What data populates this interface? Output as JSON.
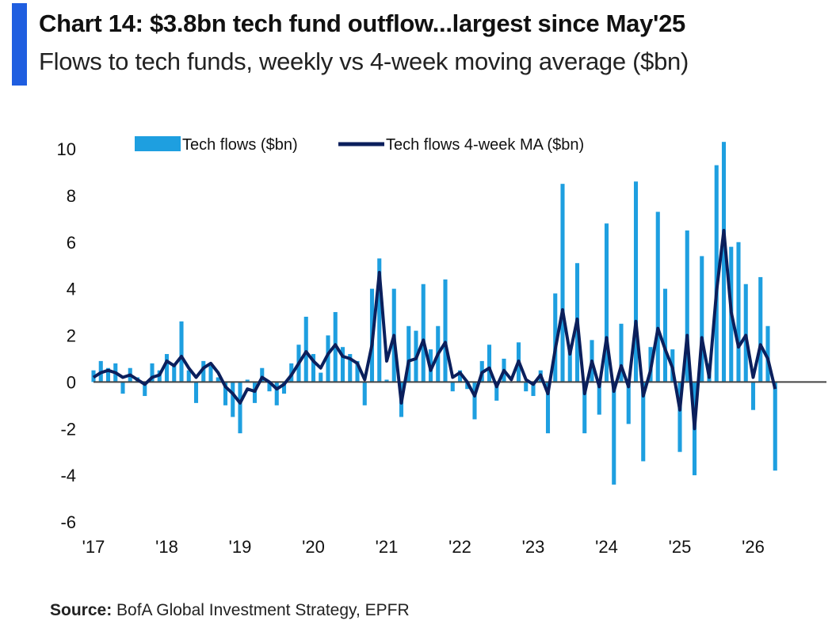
{
  "header": {
    "title": "Chart 14: $3.8bn tech fund outflow...largest since May'25",
    "subtitle": "Flows to tech funds, weekly vs 4-week moving average ($bn)"
  },
  "footer": {
    "source_label": "Source:",
    "source_text": "BofA Global Investment Strategy, EPFR"
  },
  "colors": {
    "accent": "#1f5ee0",
    "weekly": "#1e9fe0",
    "ma": "#0b1f5c",
    "zero_line": "#444444"
  },
  "chart_data": {
    "type": "bar",
    "title": "Chart 14: $3.8bn tech fund outflow...largest since May'25",
    "subtitle": "Flows to tech funds, weekly vs 4-week moving average ($bn)",
    "xlabel": "",
    "ylabel": "",
    "x_unit": "year (decimal)",
    "xlim": [
      2017,
      2027
    ],
    "ylim": [
      -6,
      10
    ],
    "yticks": [
      10,
      8,
      6,
      4,
      2,
      0,
      -2,
      -4,
      -6
    ],
    "xticks": [
      2017,
      2018,
      2019,
      2020,
      2021,
      2022,
      2023,
      2024,
      2025,
      2026
    ],
    "xtick_labels": [
      "'17",
      "'18",
      "'19",
      "'20",
      "'21",
      "'22",
      "'23",
      "'24",
      "'25",
      "'26"
    ],
    "grid": false,
    "legend_position": "top",
    "legend": [
      "Tech flows ($bn)",
      "Tech flows 4-week MA ($bn)"
    ],
    "series": [
      {
        "name": "Tech flows ($bn)",
        "style": "weekly bars",
        "x": [
          2017.0,
          2017.1,
          2017.2,
          2017.3,
          2017.4,
          2017.5,
          2017.6,
          2017.7,
          2017.8,
          2017.9,
          2018.0,
          2018.1,
          2018.2,
          2018.3,
          2018.4,
          2018.5,
          2018.6,
          2018.7,
          2018.8,
          2018.9,
          2019.0,
          2019.1,
          2019.2,
          2019.3,
          2019.4,
          2019.5,
          2019.6,
          2019.7,
          2019.8,
          2019.9,
          2020.0,
          2020.1,
          2020.2,
          2020.3,
          2020.4,
          2020.5,
          2020.6,
          2020.7,
          2020.8,
          2020.9,
          2021.0,
          2021.1,
          2021.2,
          2021.3,
          2021.4,
          2021.5,
          2021.6,
          2021.7,
          2021.8,
          2021.9,
          2022.0,
          2022.1,
          2022.2,
          2022.3,
          2022.4,
          2022.5,
          2022.6,
          2022.7,
          2022.8,
          2022.9,
          2023.0,
          2023.1,
          2023.2,
          2023.3,
          2023.4,
          2023.5,
          2023.6,
          2023.7,
          2023.8,
          2023.9,
          2024.0,
          2024.1,
          2024.2,
          2024.3,
          2024.4,
          2024.5,
          2024.6,
          2024.7,
          2024.8,
          2024.9,
          2025.0,
          2025.1,
          2025.2,
          2025.3,
          2025.4,
          2025.5,
          2025.6,
          2025.7,
          2025.8,
          2025.9,
          2026.0,
          2026.1,
          2026.2,
          2026.3
        ],
        "values": [
          0.5,
          0.9,
          0.6,
          0.8,
          -0.5,
          0.6,
          0.2,
          -0.6,
          0.8,
          0.5,
          1.2,
          0.8,
          2.6,
          0.5,
          -0.9,
          0.9,
          0.7,
          0.2,
          -1.0,
          -1.5,
          -2.2,
          0.1,
          -0.9,
          0.6,
          -0.4,
          -1.0,
          -0.5,
          0.8,
          1.6,
          2.8,
          1.2,
          0.4,
          2.0,
          3.0,
          1.5,
          1.2,
          0.9,
          -1.0,
          4.0,
          5.3,
          0.1,
          4.0,
          -1.5,
          2.4,
          2.2,
          4.2,
          1.4,
          2.4,
          4.4,
          -0.4,
          0.5,
          -0.3,
          -1.6,
          0.9,
          1.6,
          -0.8,
          1.0,
          0.0,
          1.7,
          -0.4,
          -0.6,
          0.5,
          -2.2,
          3.8,
          8.5,
          1.4,
          5.1,
          -2.2,
          1.8,
          -1.4,
          6.8,
          -4.4,
          2.5,
          -1.8,
          8.6,
          -3.4,
          1.5,
          7.3,
          4.0,
          1.4,
          -3.0,
          6.5,
          -4.0,
          5.4,
          0.8,
          9.3,
          10.3,
          5.8,
          6.0,
          4.2,
          -1.2,
          4.5,
          2.4,
          -3.8
        ]
      },
      {
        "name": "Tech flows 4-week MA ($bn)",
        "style": "line",
        "x": [
          2017.0,
          2017.1,
          2017.2,
          2017.3,
          2017.4,
          2017.5,
          2017.6,
          2017.7,
          2017.8,
          2017.9,
          2018.0,
          2018.1,
          2018.2,
          2018.3,
          2018.4,
          2018.5,
          2018.6,
          2018.7,
          2018.8,
          2018.9,
          2019.0,
          2019.1,
          2019.2,
          2019.3,
          2019.4,
          2019.5,
          2019.6,
          2019.7,
          2019.8,
          2019.9,
          2020.0,
          2020.1,
          2020.2,
          2020.3,
          2020.4,
          2020.5,
          2020.6,
          2020.7,
          2020.8,
          2020.9,
          2021.0,
          2021.1,
          2021.2,
          2021.3,
          2021.4,
          2021.5,
          2021.6,
          2021.7,
          2021.8,
          2021.9,
          2022.0,
          2022.1,
          2022.2,
          2022.3,
          2022.4,
          2022.5,
          2022.6,
          2022.7,
          2022.8,
          2022.9,
          2023.0,
          2023.1,
          2023.2,
          2023.3,
          2023.4,
          2023.5,
          2023.6,
          2023.7,
          2023.8,
          2023.9,
          2024.0,
          2024.1,
          2024.2,
          2024.3,
          2024.4,
          2024.5,
          2024.6,
          2024.7,
          2024.8,
          2024.9,
          2025.0,
          2025.1,
          2025.2,
          2025.3,
          2025.4,
          2025.5,
          2025.6,
          2025.7,
          2025.8,
          2025.9,
          2026.0,
          2026.1,
          2026.2,
          2026.3
        ],
        "values": [
          0.2,
          0.4,
          0.5,
          0.4,
          0.2,
          0.3,
          0.1,
          -0.1,
          0.2,
          0.3,
          0.9,
          0.7,
          1.1,
          0.6,
          0.2,
          0.6,
          0.8,
          0.4,
          -0.2,
          -0.5,
          -0.9,
          -0.3,
          -0.4,
          0.2,
          0.0,
          -0.3,
          -0.1,
          0.3,
          0.8,
          1.3,
          0.9,
          0.6,
          1.2,
          1.6,
          1.1,
          1.0,
          0.8,
          0.1,
          1.6,
          4.7,
          0.9,
          2.0,
          -0.9,
          0.9,
          1.0,
          1.8,
          0.5,
          1.2,
          1.7,
          0.2,
          0.4,
          0.0,
          -0.6,
          0.4,
          0.6,
          -0.2,
          0.5,
          0.1,
          0.9,
          0.1,
          -0.1,
          0.3,
          -0.5,
          1.4,
          3.1,
          1.2,
          2.7,
          -0.5,
          0.9,
          -0.2,
          1.9,
          -0.4,
          0.7,
          -0.2,
          2.6,
          -0.6,
          0.5,
          2.3,
          1.4,
          0.6,
          -1.2,
          2.0,
          -2.0,
          1.9,
          0.2,
          3.9,
          6.5,
          3.0,
          1.5,
          2.0,
          0.2,
          1.6,
          1.0,
          -0.3
        ]
      }
    ]
  }
}
